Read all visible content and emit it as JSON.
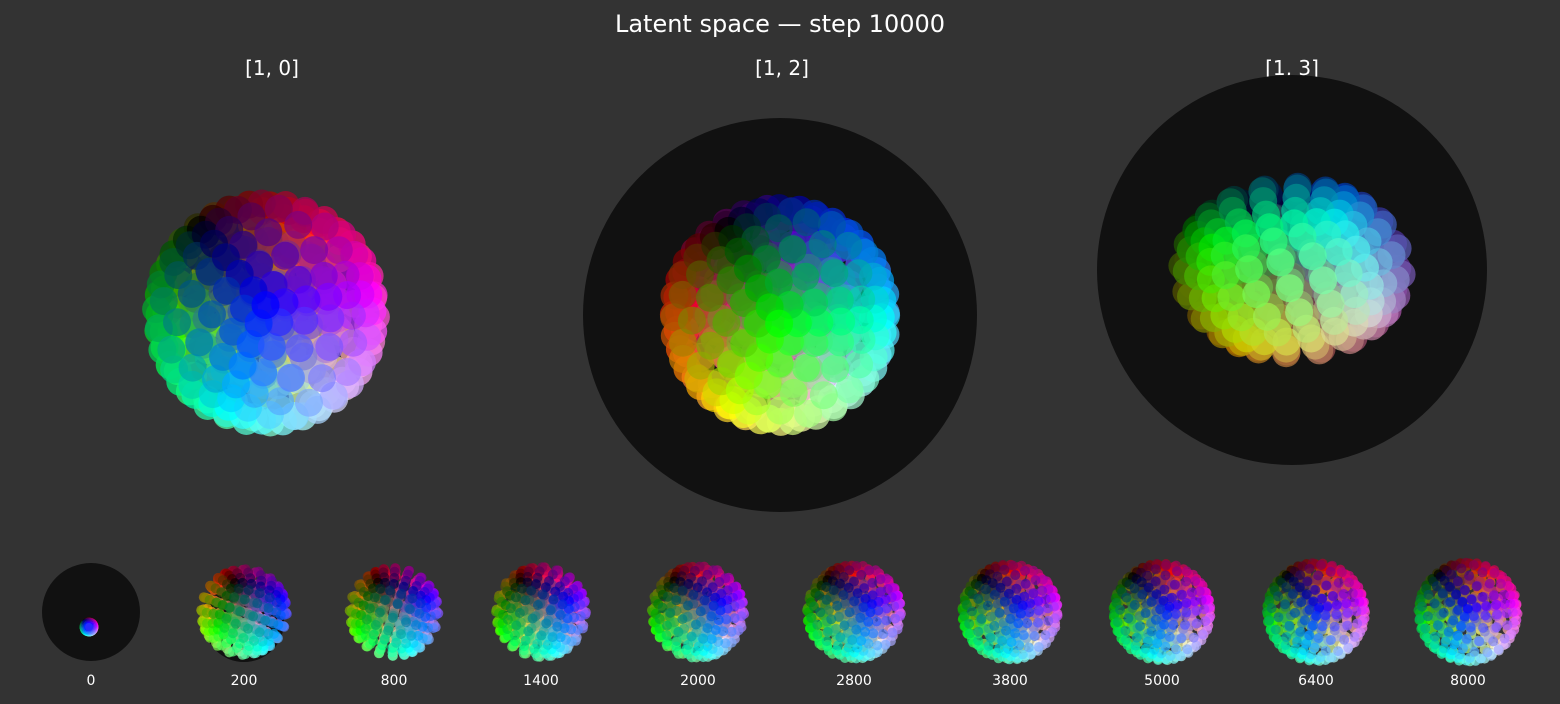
{
  "title": "Latent space — step 10000",
  "colors": {
    "background": "#333333",
    "sphere": "#111111",
    "text": "#ffffff"
  },
  "panels": [
    {
      "label": "[1, 0]",
      "dims": [
        1,
        0
      ]
    },
    {
      "label": "[1, 2]",
      "dims": [
        1,
        2
      ]
    },
    {
      "label": "[1, 3]",
      "dims": [
        1,
        3
      ]
    }
  ],
  "history": [
    {
      "label": "0",
      "step": 0,
      "progress": 0.0
    },
    {
      "label": "200",
      "step": 200,
      "progress": 0.12
    },
    {
      "label": "800",
      "step": 800,
      "progress": 0.3
    },
    {
      "label": "1400",
      "step": 1400,
      "progress": 0.42
    },
    {
      "label": "2000",
      "step": 2000,
      "progress": 0.54
    },
    {
      "label": "2800",
      "step": 2800,
      "progress": 0.66
    },
    {
      "label": "3800",
      "step": 3800,
      "progress": 0.76
    },
    {
      "label": "5000",
      "step": 5000,
      "progress": 0.86
    },
    {
      "label": "6400",
      "step": 6400,
      "progress": 0.94
    },
    {
      "label": "8000",
      "step": 8000,
      "progress": 1.0
    }
  ]
}
